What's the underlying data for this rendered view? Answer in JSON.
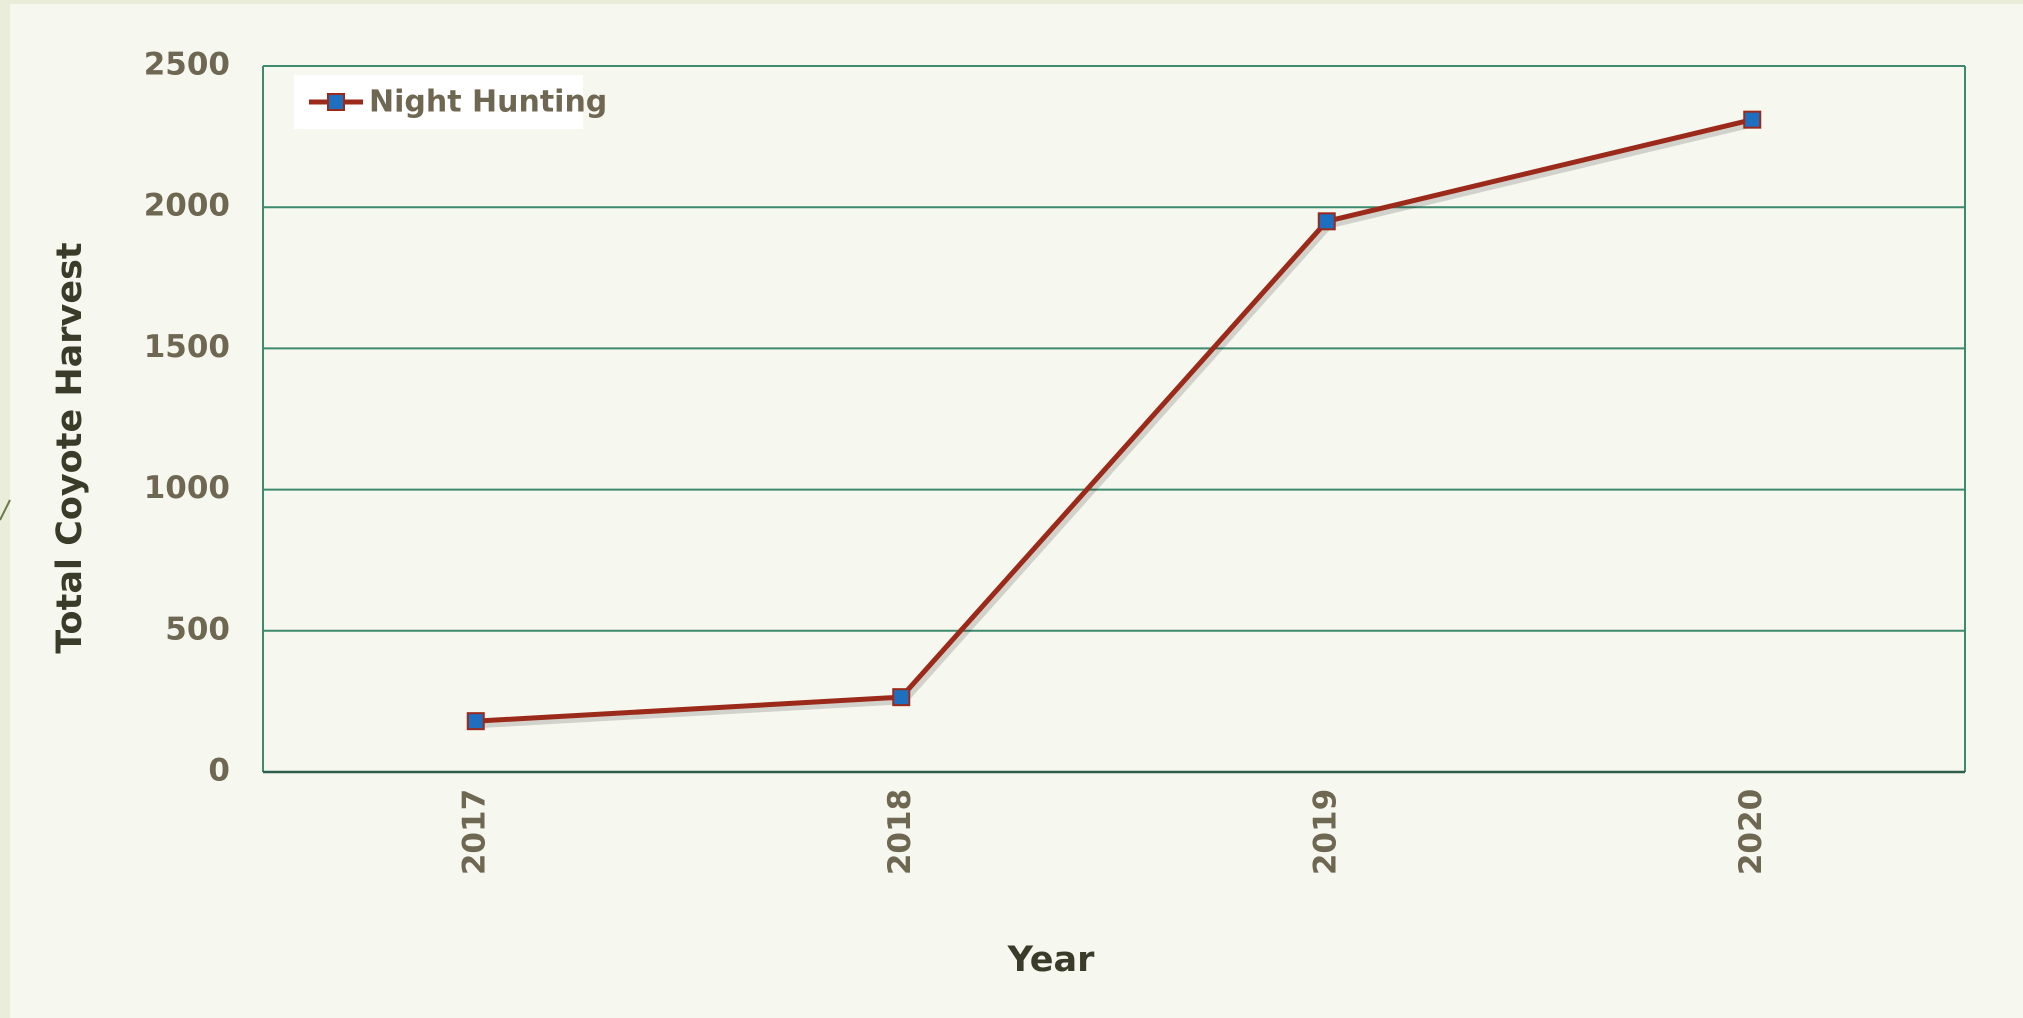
{
  "chart_data": {
    "type": "line",
    "x_label": "Year",
    "y_label": "Total Coyote Harvest",
    "categories": [
      "2017",
      "2018",
      "2019",
      "2020"
    ],
    "series": [
      {
        "name": "Night Hunting",
        "color": "#9b2a1a",
        "marker_color": "#1f6fc0",
        "values": [
          180,
          265,
          1950,
          2310
        ]
      }
    ],
    "ylim": [
      0,
      2500
    ],
    "yticks": [
      0,
      500,
      1000,
      1500,
      2000,
      2500
    ],
    "grid": true,
    "legend": "upper left"
  }
}
